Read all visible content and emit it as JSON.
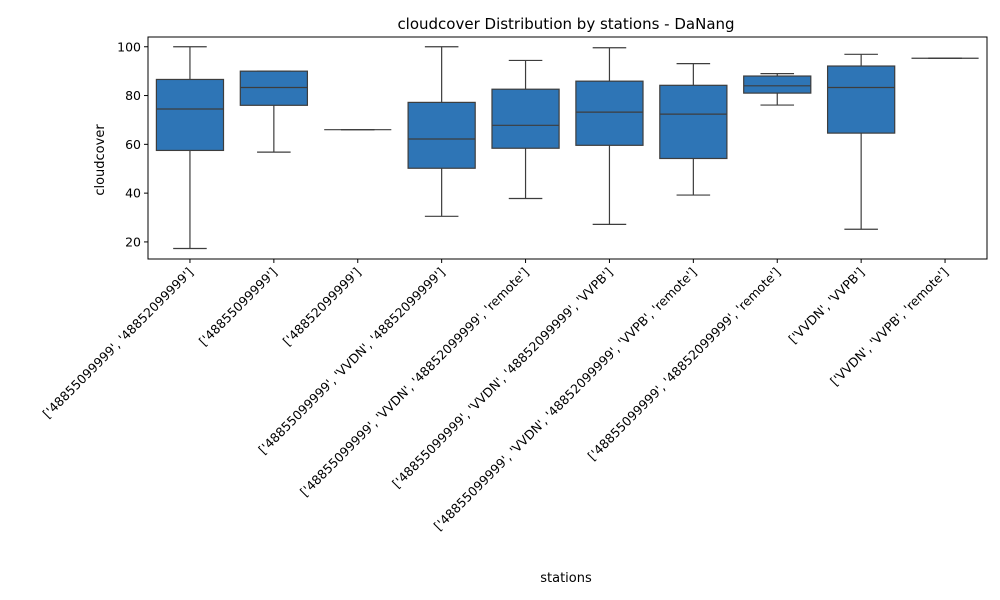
{
  "chart_data": {
    "type": "box",
    "title": "cloudcover Distribution by stations - DaNang",
    "xlabel": "stations",
    "ylabel": "cloudcover",
    "ylim": [
      13,
      104
    ],
    "yticks": [
      20,
      40,
      60,
      80,
      100
    ],
    "grid": false,
    "box_color": "#2e75b6",
    "line_color": "#3d3d3d",
    "categories": [
      "['48855099999', '48852099999']",
      "['48855099999']",
      "['48852099999']",
      "['48855099999', 'VVDN', '48852099999']",
      "['48855099999', 'VVDN', '48852099999', 'remote']",
      "['48855099999', 'VVDN', '48852099999', 'VVPB']",
      "['48855099999', 'VVDN', '48852099999', 'VVPB', 'remote']",
      "['48855099999', '48852099999', 'remote']",
      "['VVDN', 'VVPB']",
      "['VVDN', 'VVPB', 'remote']"
    ],
    "boxes": [
      {
        "whislo": 17.3,
        "q1": 57.5,
        "med": 74.5,
        "q3": 86.6,
        "whishi": 100.0
      },
      {
        "whislo": 56.8,
        "q1": 76.0,
        "med": 83.3,
        "q3": 90.0,
        "whishi": 90.0
      },
      {
        "whislo": 66.0,
        "q1": 66.0,
        "med": 66.0,
        "q3": 66.0,
        "whishi": 66.0
      },
      {
        "whislo": 30.5,
        "q1": 50.2,
        "med": 62.2,
        "q3": 77.2,
        "whishi": 100.0
      },
      {
        "whislo": 37.8,
        "q1": 58.4,
        "med": 67.8,
        "q3": 82.6,
        "whishi": 94.4
      },
      {
        "whislo": 27.2,
        "q1": 59.6,
        "med": 73.2,
        "q3": 85.9,
        "whishi": 99.6
      },
      {
        "whislo": 39.2,
        "q1": 54.2,
        "med": 72.4,
        "q3": 84.2,
        "whishi": 93.1
      },
      {
        "whislo": 76.1,
        "q1": 81.0,
        "med": 84.0,
        "q3": 88.0,
        "whishi": 89.0
      },
      {
        "whislo": 25.2,
        "q1": 64.6,
        "med": 83.3,
        "q3": 92.1,
        "whishi": 96.9
      },
      {
        "whislo": 95.3,
        "q1": 95.3,
        "med": 95.3,
        "q3": 95.3,
        "whishi": 95.3
      }
    ]
  }
}
